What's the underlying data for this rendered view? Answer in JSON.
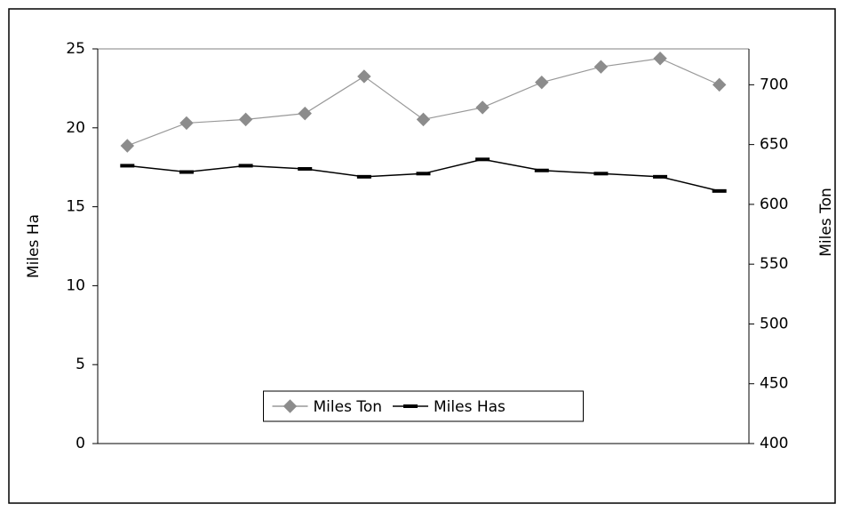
{
  "chart_data": {
    "type": "line",
    "categories": [
      null,
      null,
      null,
      null,
      null,
      null,
      null,
      null,
      null,
      null,
      null
    ],
    "ylabel": "Miles Ha",
    "y2label": "Miles Ton",
    "ylim": [
      0,
      25
    ],
    "yticks": [
      0,
      5,
      10,
      15,
      20,
      25
    ],
    "y2lim": [
      400,
      730
    ],
    "y2ticks": [
      400,
      450,
      500,
      550,
      600,
      650,
      700
    ],
    "legend": "lower center",
    "series": [
      {
        "name": "Miles Ton",
        "color": "#999999",
        "marker": "diamond",
        "axis": "y2",
        "values": [
          649,
          668,
          671,
          676,
          707,
          671,
          681,
          702,
          715,
          722,
          700
        ]
      },
      {
        "name": "Miles Has",
        "color": "#000000",
        "marker": "dash",
        "values": [
          17.6,
          17.2,
          17.6,
          17.4,
          16.9,
          17.1,
          18.0,
          17.3,
          17.1,
          16.9,
          16.0
        ]
      }
    ]
  }
}
